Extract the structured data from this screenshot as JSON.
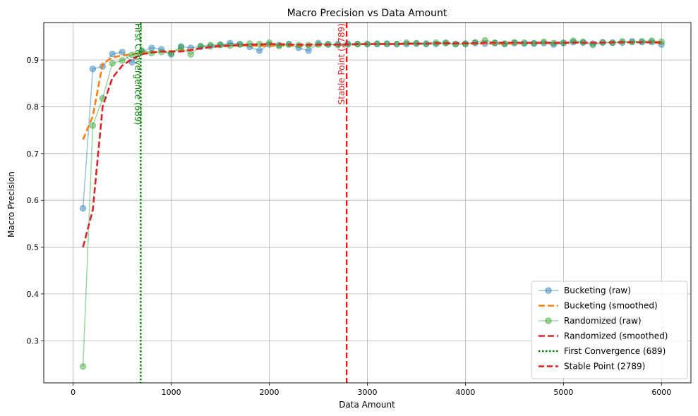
{
  "chart_data": {
    "type": "line",
    "title": "Macro Precision vs Data Amount",
    "xlabel": "Data Amount",
    "ylabel": "Macro Precision",
    "xlim": [
      -300,
      6300
    ],
    "ylim": [
      0.21,
      0.98
    ],
    "xticks": [
      0,
      1000,
      2000,
      3000,
      4000,
      5000,
      6000
    ],
    "yticks": [
      0.3,
      0.4,
      0.5,
      0.6,
      0.7,
      0.8,
      0.9
    ],
    "grid": true,
    "legend_position": "lower-right",
    "x": [
      100,
      200,
      300,
      400,
      500,
      600,
      700,
      800,
      900,
      1000,
      1100,
      1200,
      1300,
      1400,
      1500,
      1600,
      1700,
      1800,
      1900,
      2000,
      2100,
      2200,
      2300,
      2400,
      2500,
      2600,
      2700,
      2800,
      2900,
      3000,
      3100,
      3200,
      3300,
      3400,
      3500,
      3600,
      3700,
      3800,
      3900,
      4000,
      4100,
      4200,
      4300,
      4400,
      4500,
      4600,
      4700,
      4800,
      4900,
      5000,
      5100,
      5200,
      5300,
      5400,
      5500,
      5600,
      5700,
      5800,
      5900,
      6000
    ],
    "series": [
      {
        "name": "Bucketing (raw)",
        "color": "#1f77b4",
        "style": "raw",
        "values": [
          0.583,
          0.881,
          0.886,
          0.913,
          0.917,
          0.895,
          0.918,
          0.926,
          0.923,
          0.912,
          0.929,
          0.926,
          0.928,
          0.929,
          0.932,
          0.936,
          0.934,
          0.928,
          0.92,
          0.933,
          0.932,
          0.934,
          0.926,
          0.92,
          0.936,
          0.933,
          0.934,
          0.935,
          0.934,
          0.934,
          0.934,
          0.935,
          0.934,
          0.934,
          0.935,
          0.934,
          0.934,
          0.936,
          0.934,
          0.935,
          0.936,
          0.935,
          0.936,
          0.934,
          0.936,
          0.935,
          0.935,
          0.936,
          0.933,
          0.936,
          0.938,
          0.937,
          0.935,
          0.937,
          0.937,
          0.937,
          0.94,
          0.938,
          0.938,
          0.933
        ]
      },
      {
        "name": "Bucketing (smoothed)",
        "color": "#ff7f0e",
        "style": "smoothed",
        "values": [
          0.73,
          0.78,
          0.892,
          0.905,
          0.91,
          0.912,
          0.915,
          0.917,
          0.918,
          0.919,
          0.92,
          0.922,
          0.925,
          0.927,
          0.929,
          0.93,
          0.931,
          0.931,
          0.93,
          0.93,
          0.931,
          0.931,
          0.93,
          0.93,
          0.931,
          0.932,
          0.933,
          0.933,
          0.933,
          0.934,
          0.934,
          0.934,
          0.934,
          0.934,
          0.935,
          0.935,
          0.935,
          0.935,
          0.935,
          0.935,
          0.935,
          0.935,
          0.935,
          0.935,
          0.935,
          0.936,
          0.936,
          0.936,
          0.936,
          0.936,
          0.937,
          0.937,
          0.937,
          0.937,
          0.937,
          0.937,
          0.938,
          0.938,
          0.937,
          0.936
        ]
      },
      {
        "name": "Randomized (raw)",
        "color": "#2ca02c",
        "style": "raw",
        "values": [
          0.245,
          0.76,
          0.818,
          0.893,
          0.899,
          0.911,
          0.92,
          0.915,
          0.917,
          0.914,
          0.927,
          0.912,
          0.93,
          0.932,
          0.933,
          0.931,
          0.933,
          0.935,
          0.934,
          0.937,
          0.93,
          0.933,
          0.932,
          0.932,
          0.933,
          0.934,
          0.932,
          0.933,
          0.934,
          0.934,
          0.935,
          0.934,
          0.934,
          0.937,
          0.936,
          0.935,
          0.937,
          0.937,
          0.934,
          0.934,
          0.938,
          0.942,
          0.937,
          0.935,
          0.938,
          0.937,
          0.936,
          0.939,
          0.936,
          0.937,
          0.941,
          0.939,
          0.932,
          0.938,
          0.937,
          0.94,
          0.938,
          0.94,
          0.941,
          0.939
        ]
      },
      {
        "name": "Randomized (smoothed)",
        "color": "#d62728",
        "style": "smoothed",
        "values": [
          0.5,
          0.58,
          0.8,
          0.862,
          0.888,
          0.902,
          0.912,
          0.916,
          0.918,
          0.918,
          0.918,
          0.921,
          0.925,
          0.928,
          0.93,
          0.931,
          0.932,
          0.933,
          0.933,
          0.934,
          0.934,
          0.933,
          0.933,
          0.933,
          0.933,
          0.933,
          0.933,
          0.933,
          0.934,
          0.934,
          0.934,
          0.934,
          0.934,
          0.935,
          0.935,
          0.935,
          0.936,
          0.936,
          0.936,
          0.936,
          0.936,
          0.937,
          0.937,
          0.937,
          0.937,
          0.937,
          0.937,
          0.937,
          0.937,
          0.937,
          0.937,
          0.937,
          0.937,
          0.937,
          0.938,
          0.938,
          0.938,
          0.938,
          0.938,
          0.938
        ]
      }
    ],
    "vlines": [
      {
        "name": "First Convergence (689)",
        "x": 689,
        "color": "#008000",
        "style": "dotted",
        "label": "First Convergence (689)"
      },
      {
        "name": "Stable Point (2789)",
        "x": 2789,
        "color": "#e31a1c",
        "style": "dashed",
        "label": "Stable Point (2789)"
      }
    ],
    "legend": [
      "Bucketing (raw)",
      "Bucketing (smoothed)",
      "Randomized (raw)",
      "Randomized (smoothed)",
      "First Convergence (689)",
      "Stable Point (2789)"
    ]
  }
}
